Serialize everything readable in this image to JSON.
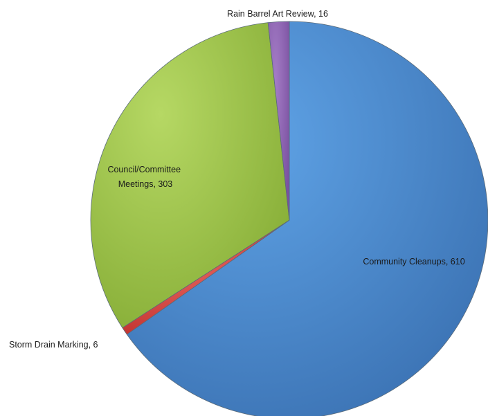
{
  "chart_data": {
    "type": "pie",
    "title": "",
    "slices": [
      {
        "label": "Community Cleanups",
        "value": 610,
        "color": "#4a86c9",
        "label_text": "Community Cleanups, 610"
      },
      {
        "label": "Storm Drain Marking",
        "value": 6,
        "color": "#d9443f",
        "label_text": "Storm Drain Marking, 6"
      },
      {
        "label": "Council/Committee Meetings",
        "value": 303,
        "color": "#9ec54a",
        "label_lines": [
          "Council/Committee",
          "Meetings, 303"
        ]
      },
      {
        "label": "Rain Barrel Art Review",
        "value": 16,
        "color": "#8f64b4",
        "label_text": "Rain Barrel Art Review, 16"
      }
    ],
    "legend": "none"
  }
}
